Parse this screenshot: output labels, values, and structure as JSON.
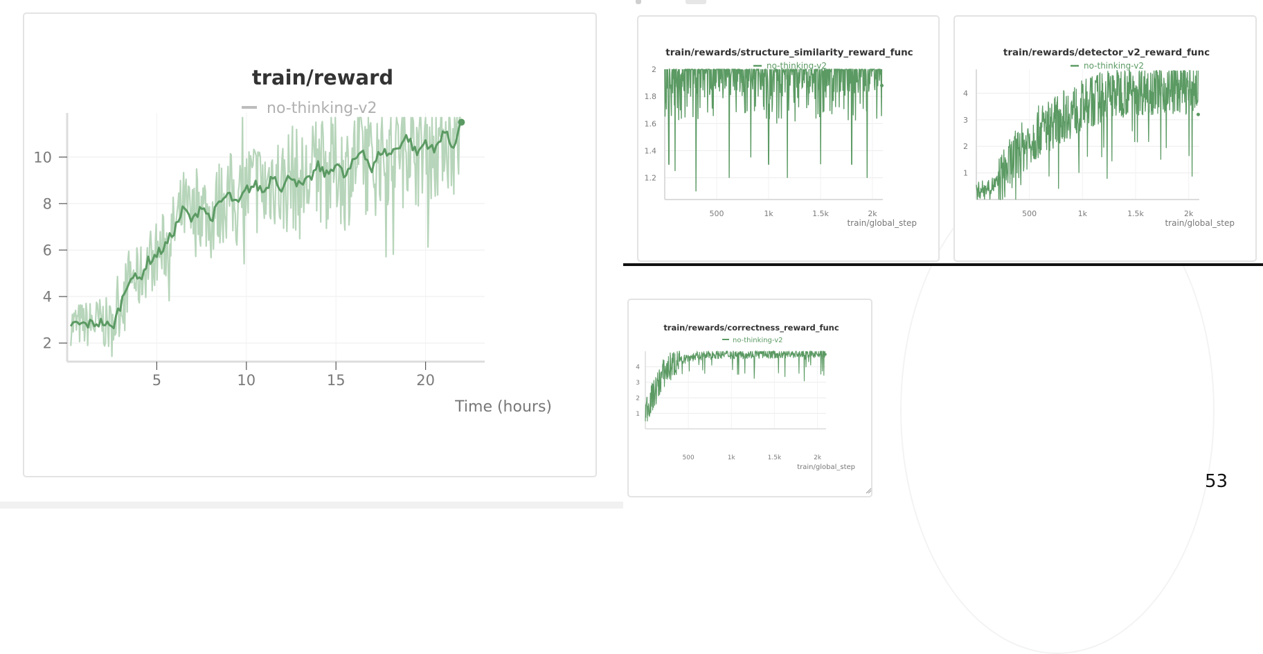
{
  "page_number": "53",
  "colors": {
    "series": "#5b9a63",
    "series_light": "#b7d5ba",
    "grid": "#ececec",
    "axis": "#dcdcdc",
    "text": "#333333",
    "muted": "#7a7a7a"
  },
  "chart_data": [
    {
      "id": "reward",
      "type": "line",
      "title": "train/reward",
      "legend": [
        {
          "name": "no-thinking-v2",
          "color": "#bdbdbd"
        }
      ],
      "xlabel": "Time (hours)",
      "x_ticks": [
        5,
        10,
        15,
        20
      ],
      "x_tick_labels": [
        "5",
        "10",
        "15",
        "20"
      ],
      "y_ticks": [
        2,
        4,
        6,
        8,
        10
      ],
      "y_tick_labels": [
        "2",
        "4",
        "6",
        "8",
        "10"
      ],
      "xlim": [
        0,
        23.3
      ],
      "ylim": [
        1.2,
        11.9
      ],
      "raw_color": "#b7d5ba",
      "smooth_color": "#5b9a63",
      "smooth": [
        [
          0.2,
          2.8
        ],
        [
          1.0,
          2.8
        ],
        [
          2.0,
          2.9
        ],
        [
          2.5,
          2.6
        ],
        [
          3.0,
          3.7
        ],
        [
          3.5,
          4.9
        ],
        [
          4.0,
          4.7
        ],
        [
          4.5,
          5.5
        ],
        [
          5.0,
          5.8
        ],
        [
          5.5,
          6.2
        ],
        [
          6.0,
          6.9
        ],
        [
          6.5,
          7.8
        ],
        [
          7.0,
          7.2
        ],
        [
          7.5,
          8.0
        ],
        [
          8.0,
          7.3
        ],
        [
          8.5,
          8.0
        ],
        [
          9.0,
          8.4
        ],
        [
          9.5,
          7.9
        ],
        [
          10.0,
          8.6
        ],
        [
          10.5,
          8.8
        ],
        [
          11.0,
          8.5
        ],
        [
          11.5,
          9.3
        ],
        [
          12.0,
          8.6
        ],
        [
          12.5,
          9.3
        ],
        [
          13.0,
          8.7
        ],
        [
          13.5,
          9.0
        ],
        [
          14.0,
          9.6
        ],
        [
          14.5,
          9.2
        ],
        [
          15.0,
          9.8
        ],
        [
          15.5,
          9.1
        ],
        [
          16.0,
          9.8
        ],
        [
          16.5,
          10.4
        ],
        [
          17.0,
          9.4
        ],
        [
          17.5,
          10.3
        ],
        [
          18.0,
          10.1
        ],
        [
          18.5,
          10.5
        ],
        [
          19.0,
          10.9
        ],
        [
          19.5,
          10.1
        ],
        [
          20.0,
          10.7
        ],
        [
          20.5,
          10.2
        ],
        [
          21.0,
          11.2
        ],
        [
          21.5,
          10.4
        ],
        [
          22.0,
          11.5
        ]
      ],
      "end_point": [
        22.0,
        11.5
      ]
    },
    {
      "id": "structure",
      "type": "line",
      "title": "train/rewards/structure_similarity_reward_func",
      "legend": [
        {
          "name": "no-thinking-v2",
          "color": "#5b9a63"
        }
      ],
      "xlabel": "train/global_step",
      "x_ticks": [
        500,
        1000,
        1500,
        2000
      ],
      "x_tick_labels": [
        "500",
        "1k",
        "1.5k",
        "2k"
      ],
      "y_ticks": [
        1.2,
        1.4,
        1.6,
        1.8,
        2.0
      ],
      "y_tick_labels": [
        "1.2",
        "1.4",
        "1.6",
        "1.8",
        "2"
      ],
      "xlim": [
        0,
        2100
      ],
      "ylim": [
        1.04,
        2.0
      ],
      "color": "#5b9a63",
      "dips": [
        [
          40,
          1.3
        ],
        [
          100,
          1.25
        ],
        [
          300,
          1.1
        ],
        [
          620,
          1.2
        ],
        [
          830,
          1.35
        ],
        [
          1000,
          1.3
        ],
        [
          1180,
          1.2
        ],
        [
          1500,
          1.3
        ],
        [
          1800,
          1.3
        ],
        [
          1950,
          1.2
        ]
      ],
      "end_point": [
        2090,
        1.88
      ]
    },
    {
      "id": "detector",
      "type": "line",
      "title": "train/rewards/detector_v2_reward_func",
      "legend": [
        {
          "name": "no-thinking-v2",
          "color": "#5b9a63"
        }
      ],
      "xlabel": "train/global_step",
      "x_ticks": [
        500,
        1000,
        1500,
        2000
      ],
      "x_tick_labels": [
        "500",
        "1k",
        "1.5k",
        "2k"
      ],
      "y_ticks": [
        1,
        2,
        3,
        4
      ],
      "y_tick_labels": [
        "1",
        "2",
        "3",
        "4"
      ],
      "xlim": [
        0,
        2100
      ],
      "ylim": [
        0,
        4.9
      ],
      "color": "#5b9a63",
      "end_point": [
        2090,
        3.2
      ]
    },
    {
      "id": "correctness",
      "type": "line",
      "title": "train/rewards/correctness_reward_func",
      "legend": [
        {
          "name": "no-thinking-v2",
          "color": "#5b9a63"
        }
      ],
      "xlabel": "train/global_step",
      "x_ticks": [
        500,
        1000,
        1500,
        2000
      ],
      "x_tick_labels": [
        "500",
        "1k",
        "1.5k",
        "2k"
      ],
      "y_ticks": [
        1,
        2,
        3,
        4
      ],
      "y_tick_labels": [
        "1",
        "2",
        "3",
        "4"
      ],
      "xlim": [
        0,
        2100
      ],
      "ylim": [
        0,
        5.0
      ],
      "color": "#5b9a63",
      "end_point": [
        2090,
        4.8
      ]
    }
  ]
}
